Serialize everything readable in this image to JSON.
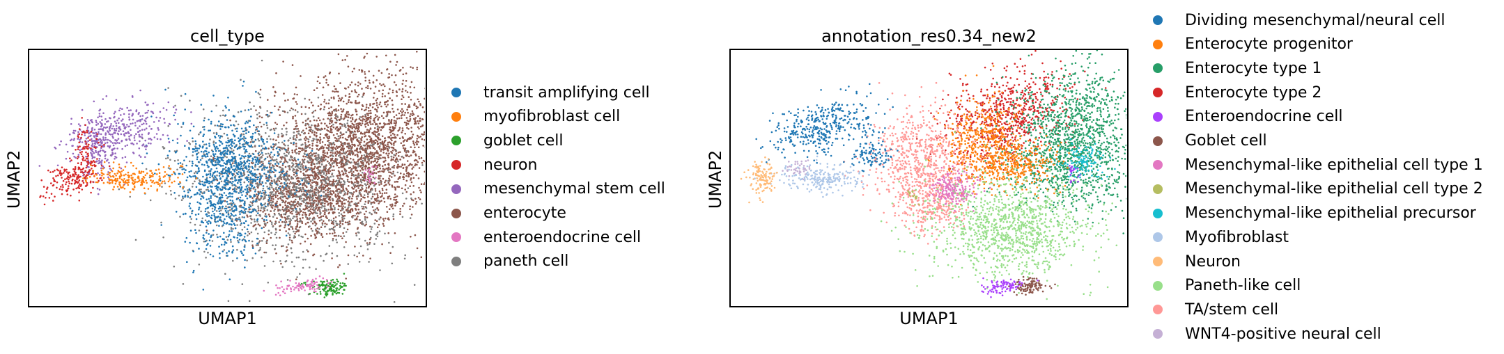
{
  "chart_data": [
    {
      "type": "scatter",
      "title": "cell_type",
      "xlabel": "UMAP1",
      "ylabel": "UMAP2",
      "grid": false,
      "legend_position": "right",
      "series": [
        {
          "name": "transit amplifying cell",
          "color": "#1f77b4"
        },
        {
          "name": "myofibroblast cell",
          "color": "#ff7f0e"
        },
        {
          "name": "goblet cell",
          "color": "#2ca02c"
        },
        {
          "name": "neuron",
          "color": "#d62728"
        },
        {
          "name": "mesenchymal stem cell",
          "color": "#9467bd"
        },
        {
          "name": "enterocyte",
          "color": "#8c564b"
        },
        {
          "name": "enteroendocrine cell",
          "color": "#e377c2"
        },
        {
          "name": "paneth cell",
          "color": "#7f7f7f"
        }
      ]
    },
    {
      "type": "scatter",
      "title": "annotation_res0.34_new2",
      "xlabel": "UMAP1",
      "ylabel": "UMAP2",
      "grid": false,
      "legend_position": "right",
      "series": [
        {
          "name": "Dividing mesenchymal/neural cell",
          "color": "#1f77b4"
        },
        {
          "name": "Enterocyte progenitor",
          "color": "#ff7f0e"
        },
        {
          "name": "Enterocyte type 1",
          "color": "#279e68"
        },
        {
          "name": "Enterocyte type 2",
          "color": "#d62728"
        },
        {
          "name": "Enteroendocrine cell",
          "color": "#aa40fc"
        },
        {
          "name": "Goblet cell",
          "color": "#8c564b"
        },
        {
          "name": "Mesenchymal-like epithelial cell type 1",
          "color": "#e377c2"
        },
        {
          "name": "Mesenchymal-like epithelial cell type 2",
          "color": "#b5bd61"
        },
        {
          "name": "Mesenchymal-like epithelial precursor",
          "color": "#17becf"
        },
        {
          "name": "Myofibroblast",
          "color": "#aec7e8"
        },
        {
          "name": "Neuron",
          "color": "#ffbb78"
        },
        {
          "name": "Paneth-like cell",
          "color": "#98df8a"
        },
        {
          "name": "TA/stem cell",
          "color": "#ff9896"
        },
        {
          "name": "WNT4-positive neural cell",
          "color": "#c5b0d5"
        }
      ]
    }
  ]
}
